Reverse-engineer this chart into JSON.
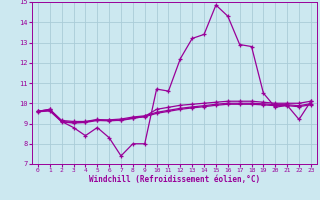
{
  "xlabel": "Windchill (Refroidissement éolien,°C)",
  "bg_color": "#cce8f0",
  "grid_color": "#aaccd8",
  "line_color": "#990099",
  "xlim": [
    -0.5,
    23.5
  ],
  "ylim": [
    7,
    15
  ],
  "xticks": [
    0,
    1,
    2,
    3,
    4,
    5,
    6,
    7,
    8,
    9,
    10,
    11,
    12,
    13,
    14,
    15,
    16,
    17,
    18,
    19,
    20,
    21,
    22,
    23
  ],
  "yticks": [
    7,
    8,
    9,
    10,
    11,
    12,
    13,
    14,
    15
  ],
  "line1_x": [
    0,
    1,
    2,
    3,
    4,
    5,
    6,
    7,
    8,
    9,
    10,
    11,
    12,
    13,
    14,
    15,
    16,
    17,
    18,
    19,
    20,
    21,
    22,
    23
  ],
  "line1_y": [
    9.6,
    9.7,
    9.1,
    8.8,
    8.4,
    8.8,
    8.3,
    7.4,
    8.0,
    8.0,
    10.7,
    10.6,
    12.2,
    13.2,
    13.4,
    14.85,
    14.3,
    12.9,
    12.8,
    10.5,
    9.8,
    9.9,
    9.2,
    10.1
  ],
  "line2_x": [
    0,
    1,
    2,
    3,
    4,
    5,
    6,
    7,
    8,
    9,
    10,
    11,
    12,
    13,
    14,
    15,
    16,
    17,
    18,
    19,
    20,
    21,
    22,
    23
  ],
  "line2_y": [
    9.6,
    9.7,
    9.15,
    9.1,
    9.1,
    9.2,
    9.15,
    9.15,
    9.25,
    9.35,
    9.7,
    9.8,
    9.9,
    9.95,
    10.0,
    10.05,
    10.1,
    10.1,
    10.1,
    10.05,
    10.0,
    10.0,
    10.0,
    10.1
  ],
  "line3_x": [
    0,
    1,
    2,
    3,
    4,
    5,
    6,
    7,
    8,
    9,
    10,
    11,
    12,
    13,
    14,
    15,
    16,
    17,
    18,
    19,
    20,
    21,
    22,
    23
  ],
  "line3_y": [
    9.6,
    9.65,
    9.1,
    9.05,
    9.08,
    9.18,
    9.18,
    9.22,
    9.32,
    9.38,
    9.55,
    9.65,
    9.75,
    9.82,
    9.88,
    9.95,
    10.0,
    10.0,
    10.0,
    9.97,
    9.93,
    9.93,
    9.88,
    9.98
  ],
  "line4_x": [
    0,
    1,
    2,
    3,
    4,
    5,
    6,
    7,
    8,
    9,
    10,
    11,
    12,
    13,
    14,
    15,
    16,
    17,
    18,
    19,
    20,
    21,
    22,
    23
  ],
  "line4_y": [
    9.58,
    9.62,
    9.08,
    9.02,
    9.05,
    9.15,
    9.13,
    9.17,
    9.27,
    9.33,
    9.5,
    9.6,
    9.7,
    9.77,
    9.83,
    9.9,
    9.95,
    9.95,
    9.95,
    9.92,
    9.88,
    9.88,
    9.83,
    9.93
  ]
}
